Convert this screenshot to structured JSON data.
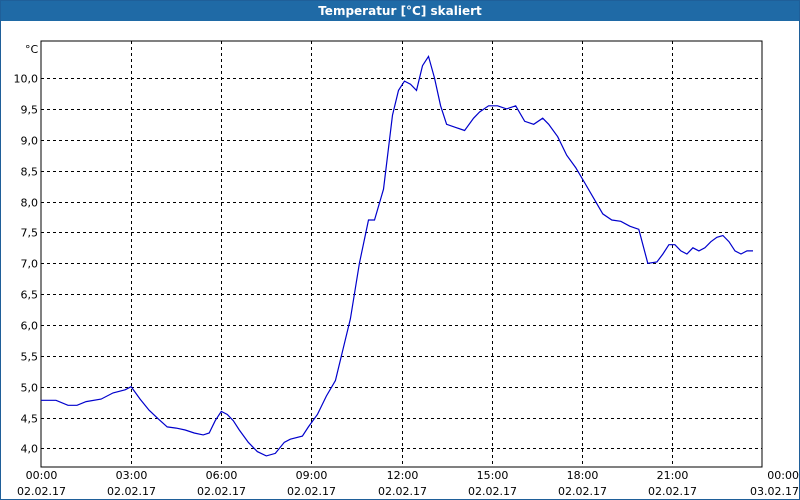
{
  "window": {
    "title": "Temperatur [°C] skaliert"
  },
  "chart_data": {
    "type": "line",
    "title": "Temperatur [°C] skaliert",
    "ylabel": "°C",
    "ylim": [
      3.7,
      10.6
    ],
    "xlim_hours": [
      0,
      24
    ],
    "grid": true,
    "line_color": "#0000cc",
    "y_ticks": [
      {
        "value": 4.0,
        "label": "4,0"
      },
      {
        "value": 4.5,
        "label": "4,5"
      },
      {
        "value": 5.0,
        "label": "5,0"
      },
      {
        "value": 5.5,
        "label": "5,5"
      },
      {
        "value": 6.0,
        "label": "6,0"
      },
      {
        "value": 6.5,
        "label": "6,5"
      },
      {
        "value": 7.0,
        "label": "7,0"
      },
      {
        "value": 7.5,
        "label": "7,5"
      },
      {
        "value": 8.0,
        "label": "8,0"
      },
      {
        "value": 8.5,
        "label": "8,5"
      },
      {
        "value": 9.0,
        "label": "9,0"
      },
      {
        "value": 9.5,
        "label": "9,5"
      },
      {
        "value": 10.0,
        "label": "10,0"
      }
    ],
    "x_ticks": [
      {
        "value": 0,
        "time": "00:00",
        "date": "02.02.17"
      },
      {
        "value": 3,
        "time": "03:00",
        "date": "02.02.17"
      },
      {
        "value": 6,
        "time": "06:00",
        "date": "02.02.17"
      },
      {
        "value": 9,
        "time": "09:00",
        "date": "02.02.17"
      },
      {
        "value": 12,
        "time": "12:00",
        "date": "02.02.17"
      },
      {
        "value": 15,
        "time": "15:00",
        "date": "02.02.17"
      },
      {
        "value": 18,
        "time": "18:00",
        "date": "02.02.17"
      },
      {
        "value": 21,
        "time": "21:00",
        "date": "02.02.17"
      },
      {
        "value": 24,
        "time": "00:00",
        "date": "03.02.17"
      }
    ],
    "series": [
      {
        "x": [
          0.0,
          0.5,
          0.9,
          1.2,
          1.5,
          2.0,
          2.4,
          2.8,
          3.0,
          3.3,
          3.6,
          3.9,
          4.2,
          4.5,
          4.8,
          5.1,
          5.4,
          5.6,
          5.8,
          6.0,
          6.2,
          6.4,
          6.6,
          6.9,
          7.2,
          7.5,
          7.8,
          8.1,
          8.3,
          8.7,
          8.9,
          9.2,
          9.5,
          9.8,
          10.1,
          10.3,
          10.6,
          10.9,
          11.1,
          11.4,
          11.7,
          11.9,
          12.1,
          12.3,
          12.5,
          12.7,
          12.9,
          13.1,
          13.3,
          13.5,
          13.8,
          14.1,
          14.4,
          14.6,
          14.9,
          15.2,
          15.5,
          15.8,
          16.1,
          16.4,
          16.7,
          16.9,
          17.2,
          17.5,
          17.8,
          18.1,
          18.4,
          18.7,
          19.0,
          19.3,
          19.6,
          19.9,
          20.2,
          20.5,
          20.7,
          20.9,
          21.1,
          21.3,
          21.5,
          21.7,
          21.9,
          22.1,
          22.3,
          22.5,
          22.7,
          22.9,
          23.1,
          23.3,
          23.5,
          23.7
        ],
        "y": [
          4.78,
          4.78,
          4.7,
          4.7,
          4.76,
          4.8,
          4.9,
          4.95,
          5.0,
          4.8,
          4.62,
          4.48,
          4.35,
          4.33,
          4.3,
          4.25,
          4.22,
          4.25,
          4.45,
          4.6,
          4.55,
          4.45,
          4.3,
          4.1,
          3.95,
          3.88,
          3.92,
          4.1,
          4.15,
          4.2,
          4.35,
          4.55,
          4.85,
          5.1,
          5.7,
          6.1,
          7.0,
          7.7,
          7.7,
          8.2,
          9.4,
          9.8,
          9.95,
          9.9,
          9.8,
          10.2,
          10.35,
          10.0,
          9.55,
          9.25,
          9.2,
          9.15,
          9.35,
          9.45,
          9.55,
          9.55,
          9.5,
          9.55,
          9.3,
          9.25,
          9.35,
          9.25,
          9.05,
          8.75,
          8.55,
          8.3,
          8.05,
          7.8,
          7.7,
          7.68,
          7.6,
          7.55,
          7.0,
          7.02,
          7.15,
          7.3,
          7.3,
          7.2,
          7.15,
          7.25,
          7.2,
          7.25,
          7.35,
          7.42,
          7.45,
          7.35,
          7.2,
          7.15,
          7.2,
          7.2
        ]
      }
    ]
  }
}
